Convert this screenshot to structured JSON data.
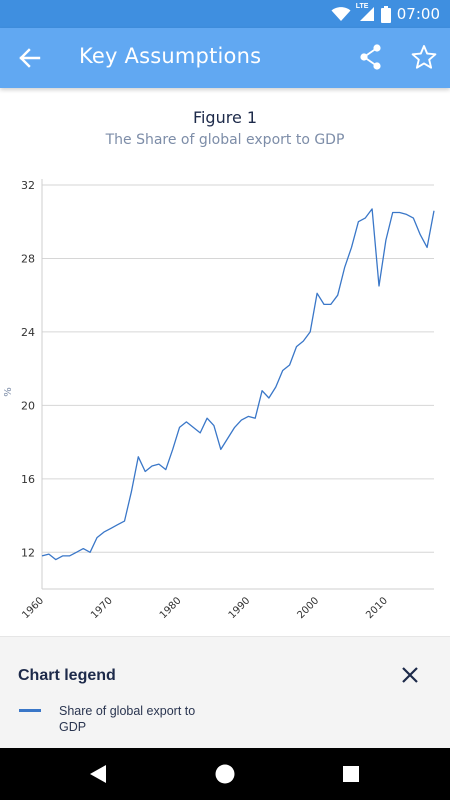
{
  "status_bar": {
    "time": "07:00",
    "network": "LTE",
    "icons": [
      "wifi-icon",
      "cellular-signal-icon",
      "battery-icon"
    ]
  },
  "app_bar": {
    "title": "Key Assumptions",
    "back_icon": "arrow-back-icon",
    "share_icon": "share-icon",
    "favorite_icon": "star-outline-icon"
  },
  "figure": {
    "title": "Figure 1",
    "subtitle": "The Share of global export to GDP"
  },
  "chart_data": {
    "type": "line",
    "ylabel": "%",
    "xlim": [
      1960,
      2017
    ],
    "ylim": [
      10,
      32
    ],
    "y_ticks": [
      12,
      16,
      20,
      24,
      28,
      32
    ],
    "x_ticks": [
      1960,
      1970,
      1980,
      1990,
      2000,
      2010
    ],
    "grid": "horizontal",
    "color": "#3a77c8",
    "series": [
      {
        "name": "Share of global export to GDP",
        "x": [
          1960,
          1961,
          1962,
          1963,
          1964,
          1965,
          1966,
          1967,
          1968,
          1969,
          1970,
          1971,
          1972,
          1973,
          1974,
          1975,
          1976,
          1977,
          1978,
          1979,
          1980,
          1981,
          1982,
          1983,
          1984,
          1985,
          1986,
          1987,
          1988,
          1989,
          1990,
          1991,
          1992,
          1993,
          1994,
          1995,
          1996,
          1997,
          1998,
          1999,
          2000,
          2001,
          2002,
          2003,
          2004,
          2005,
          2006,
          2007,
          2008,
          2009,
          2010,
          2011,
          2012,
          2013,
          2014,
          2015,
          2016,
          2017
        ],
        "values": [
          11.8,
          11.9,
          11.6,
          11.8,
          11.8,
          12.0,
          12.2,
          12.0,
          12.8,
          13.1,
          13.3,
          13.5,
          13.7,
          15.3,
          17.2,
          16.4,
          16.7,
          16.8,
          16.5,
          17.6,
          18.8,
          19.1,
          18.8,
          18.5,
          19.3,
          18.9,
          17.6,
          18.2,
          18.8,
          19.2,
          19.4,
          19.3,
          20.8,
          20.4,
          21.0,
          21.9,
          22.2,
          23.2,
          23.5,
          24.0,
          26.1,
          25.5,
          25.5,
          26.0,
          27.5,
          28.6,
          30.0,
          30.2,
          30.7,
          26.5,
          29.0,
          30.5,
          30.5,
          30.4,
          30.2,
          29.3,
          28.6,
          30.6
        ]
      }
    ]
  },
  "legend": {
    "title": "Chart legend",
    "close_icon": "close-icon",
    "items": [
      {
        "label": "Share of global export to GDP",
        "color": "#3a77c8"
      }
    ]
  },
  "nav_bar": {
    "icons": [
      "nav-back-icon",
      "nav-home-icon",
      "nav-recents-icon"
    ]
  }
}
